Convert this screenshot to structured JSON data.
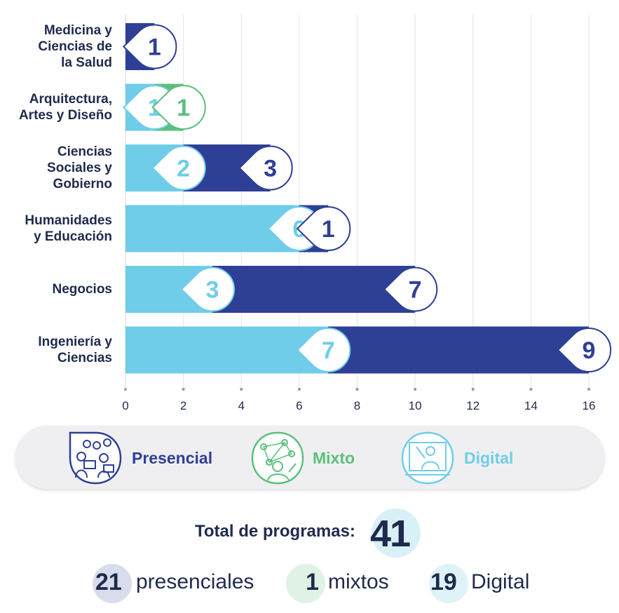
{
  "chart_data": {
    "type": "bar",
    "orientation": "horizontal",
    "stacked": true,
    "categories": [
      "Medicina y\nCiencias de\nla Salud",
      "Arquitectura,\nArtes y Diseño",
      "Ciencias\nSociales y\nGobierno",
      "Humanidades\ny Educación",
      "Negocios",
      "Ingeniería y\nCiencias"
    ],
    "series": [
      {
        "name": "Digital",
        "color": "#6fcdea",
        "values": [
          0,
          1,
          2,
          6,
          3,
          7
        ]
      },
      {
        "name": "Mixto",
        "color": "#5cbf7c",
        "values": [
          0,
          1,
          0,
          0,
          0,
          0
        ]
      },
      {
        "name": "Presencial",
        "color": "#2e3f96",
        "values": [
          1,
          0,
          3,
          1,
          7,
          9
        ]
      }
    ],
    "xlim": [
      0,
      16
    ],
    "xticks": [
      "0",
      "2",
      "4",
      "6",
      "8",
      "10",
      "12",
      "14",
      "16"
    ],
    "grid": true,
    "legend_placement": "bottom"
  },
  "legend": {
    "presencial": {
      "label": "Presencial",
      "color": "#2e3f96",
      "icon": "people-meeting-icon"
    },
    "mixto": {
      "label": "Mixto",
      "color": "#5cbf7c",
      "icon": "network-person-icon"
    },
    "digital": {
      "label": "Digital",
      "color": "#6fcdea",
      "icon": "online-teacher-icon"
    }
  },
  "totals": {
    "label": "Total de programas:",
    "total": "41",
    "presencial_num": "21",
    "presencial_text": "presenciales",
    "mixtos_num": "1",
    "mixtos_text": "mixtos",
    "digital_num": "19",
    "digital_text": "Digital"
  }
}
